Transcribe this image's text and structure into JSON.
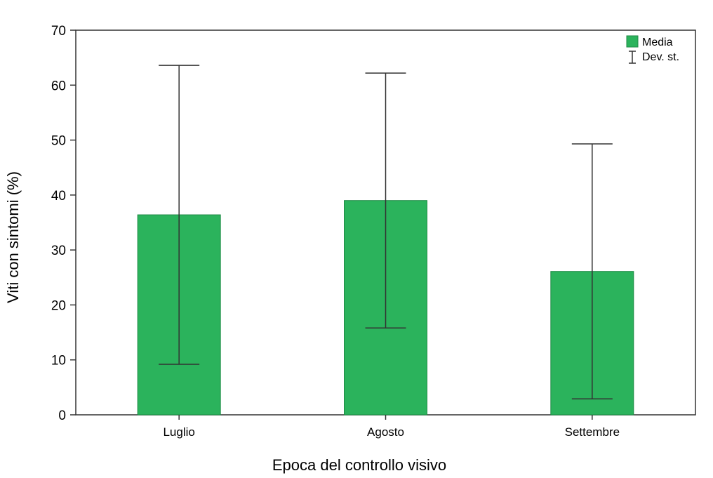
{
  "chart_data": {
    "type": "bar",
    "categories": [
      "Luglio",
      "Agosto",
      "Settembre"
    ],
    "series": [
      {
        "name": "Media",
        "values": [
          36.4,
          39.0,
          26.1
        ],
        "std": [
          27.2,
          23.2,
          23.2
        ]
      }
    ],
    "xlabel": "Epoca del controllo visivo",
    "ylabel": "Viti con sintomi (%)",
    "ylim": [
      0,
      70
    ],
    "yticks": [
      0,
      10,
      20,
      30,
      40,
      50,
      60,
      70
    ],
    "grid": false,
    "legend": {
      "position": "top-right",
      "entries": [
        "Media",
        "Dev. st."
      ]
    },
    "colors": {
      "bar": "#2bb35c",
      "bar_edge": "#1e8a45",
      "error_bar": "#333333",
      "axis": "#333333"
    }
  }
}
